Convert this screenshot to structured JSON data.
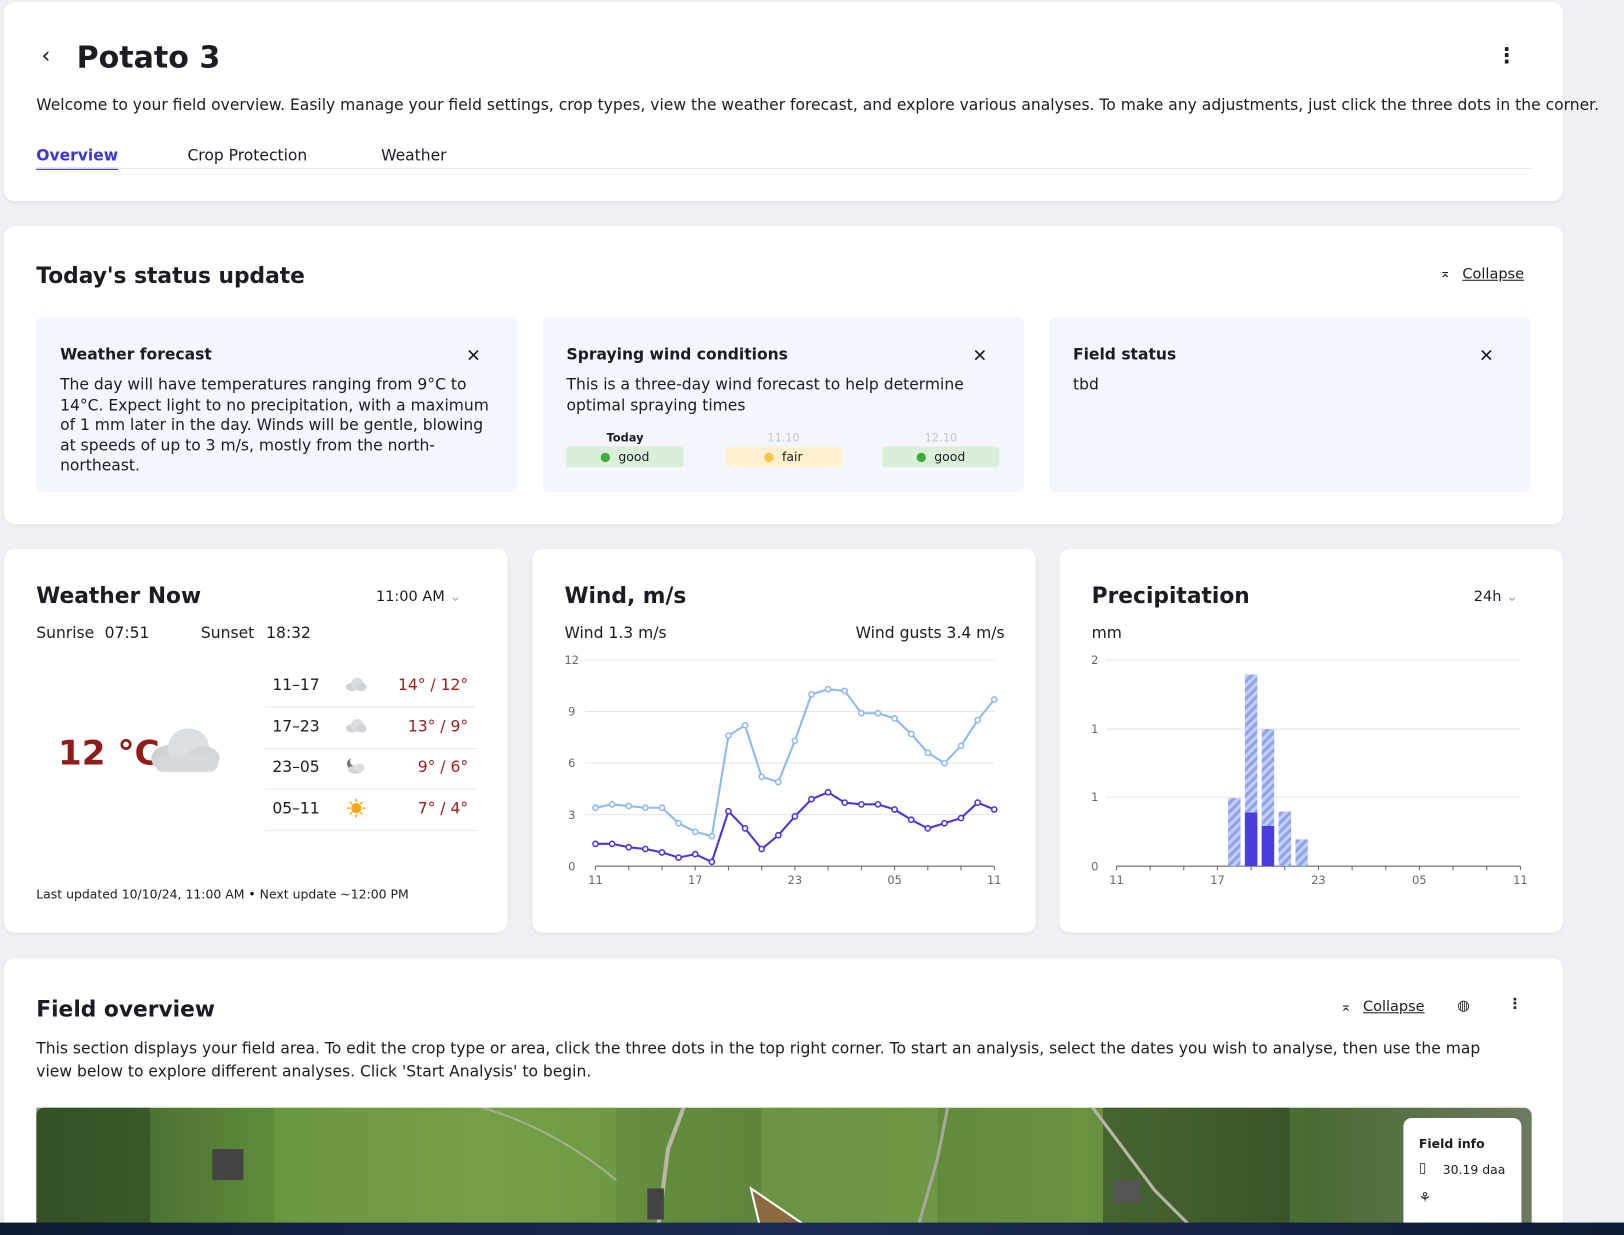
{
  "header": {
    "title": "Potato 3",
    "description": "Welcome to your field overview. Easily manage your field settings, crop types, view the weather forecast, and explore various analyses. To make any adjustments, just click the three dots in the corner.",
    "tabs": [
      "Overview",
      "Crop Protection",
      "Weather"
    ],
    "active_tab": 0
  },
  "status": {
    "title": "Today's status update",
    "collapse": "Collapse",
    "cards": [
      {
        "title": "Weather forecast",
        "text": "The day will have temperatures ranging from 9°C to 14°C. Expect light to no precipitation, with a maximum of 1 mm later in the day. Winds will be gentle, blowing at speeds of up to 3 m/s, mostly from the north-northeast."
      },
      {
        "title": "Spraying wind conditions",
        "text": "This is a three-day wind forecast to help determine optimal spraying times",
        "days": [
          {
            "label": "Today",
            "rating": "good"
          },
          {
            "label": "11.10",
            "rating": "fair"
          },
          {
            "label": "12.10",
            "rating": "good"
          }
        ]
      },
      {
        "title": "Field status",
        "text": "tbd"
      }
    ]
  },
  "weather_now": {
    "title": "Weather Now",
    "time": "11:00 AM",
    "sunrise_label": "Sunrise",
    "sunrise": "07:51",
    "sunset_label": "Sunset",
    "sunset": "18:32",
    "temperature": "12 °C",
    "periods": [
      {
        "range": "11–17",
        "icon": "cloud",
        "temps": "14° / 12°"
      },
      {
        "range": "17–23",
        "icon": "cloud",
        "temps": "13° / 9°"
      },
      {
        "range": "23–05",
        "icon": "moon-cloud",
        "temps": "9° / 6°"
      },
      {
        "range": "05–11",
        "icon": "sun",
        "temps": "7° / 4°"
      }
    ],
    "footer": "Last updated 10/10/24, 11:00 AM • Next update ~12:00 PM"
  },
  "wind": {
    "title": "Wind, m/s",
    "wind_now": "Wind 1.3 m/s",
    "gusts": "Wind gusts 3.4 m/s",
    "chart": {
      "type": "line",
      "categories": [
        "11",
        null,
        null,
        null,
        null,
        null,
        "17",
        null,
        null,
        null,
        null,
        null,
        "23",
        null,
        null,
        null,
        null,
        null,
        "05",
        null,
        null,
        null,
        null,
        null,
        "11"
      ],
      "series": [
        {
          "color": "#8fb8f0",
          "values": [
            3.4,
            3.6,
            3.5,
            3.4,
            3.4,
            2.5,
            2.0,
            1.75,
            7.6,
            8.2,
            5.2,
            4.9,
            7.3,
            10.0,
            10.3,
            10.2,
            8.9,
            8.9,
            8.6,
            7.7,
            6.6,
            6.0,
            7.0,
            8.5,
            9.7
          ]
        },
        {
          "color": "#4a35d8",
          "values": [
            1.3,
            1.3,
            1.1,
            1.0,
            0.8,
            0.5,
            0.7,
            0.25,
            3.2,
            2.2,
            1.0,
            1.8,
            2.9,
            3.9,
            4.3,
            3.7,
            3.6,
            3.6,
            3.3,
            2.7,
            2.2,
            2.5,
            2.8,
            3.7,
            3.3
          ]
        }
      ],
      "ylim": [
        0,
        12
      ],
      "yticks": [
        0,
        3,
        6,
        9,
        12
      ],
      "grid": true
    }
  },
  "precipitation": {
    "title": "Precipitation",
    "period": "24h",
    "unit": "mm",
    "chart": {
      "type": "bar",
      "categories": [
        "11",
        null,
        null,
        null,
        null,
        null,
        "17",
        null,
        null,
        null,
        null,
        null,
        "23",
        null,
        null,
        null,
        null,
        null,
        "05",
        null,
        null,
        null,
        null,
        null,
        "11"
      ],
      "series": [
        {
          "color": "#8ea3ee",
          "hatched": true,
          "values": [
            0,
            0,
            0,
            0,
            0,
            0,
            0,
            0.66,
            1.86,
            1.33,
            0.53,
            0.26,
            0,
            0,
            0,
            0,
            0,
            0,
            0,
            0,
            0,
            0,
            0,
            0,
            0
          ]
        },
        {
          "color": "#4a3de0",
          "hatched": false,
          "values": [
            0,
            0,
            0,
            0,
            0,
            0,
            0,
            0,
            0.52,
            0.39,
            0,
            0,
            0,
            0,
            0,
            0,
            0,
            0,
            0,
            0,
            0,
            0,
            0,
            0,
            0
          ]
        }
      ],
      "ylim": [
        0,
        2
      ],
      "yticks": [
        0,
        {
          "value": 0.67,
          "label": "1"
        },
        {
          "value": 1.33,
          "label": "1"
        },
        2
      ],
      "grid": true
    }
  },
  "field_overview": {
    "title": "Field overview",
    "collapse": "Collapse",
    "description": "This section displays your field area. To edit the crop type or area, click the three dots in the top right corner. To start an analysis, select the dates you wish to analyse, then use the map view below to explore different analyses. Click 'Start Analysis' to begin.",
    "field_info": {
      "title": "Field info",
      "area": "30.19 daa"
    }
  }
}
